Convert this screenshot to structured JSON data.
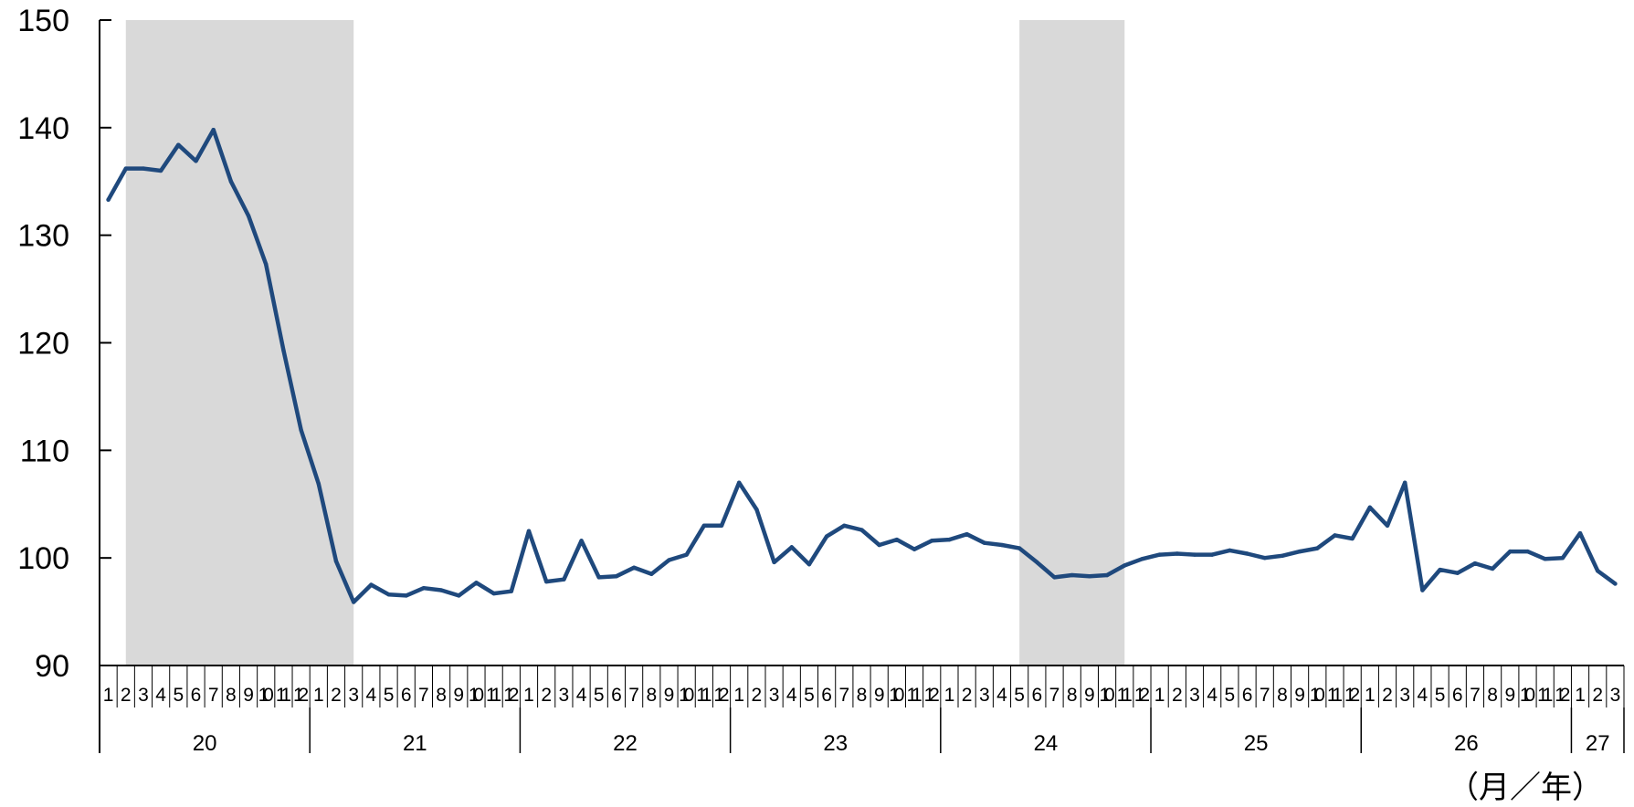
{
  "chart_data": {
    "type": "line",
    "title": "",
    "xlabel": "（月／年）",
    "ylabel": "",
    "ylim": [
      90,
      150
    ],
    "yticks": [
      90,
      100,
      110,
      120,
      130,
      140,
      150
    ],
    "grid": false,
    "legend": "none",
    "colors": {
      "line": "#1f497d",
      "shade": "#d9d9d9",
      "axis": "#000000"
    },
    "year_labels": [
      {
        "label": "20",
        "start": 0,
        "end": 12
      },
      {
        "label": "21",
        "start": 12,
        "end": 24
      },
      {
        "label": "22",
        "start": 24,
        "end": 36
      },
      {
        "label": "23",
        "start": 36,
        "end": 48
      },
      {
        "label": "24",
        "start": 48,
        "end": 60
      },
      {
        "label": "25",
        "start": 60,
        "end": 72
      },
      {
        "label": "26",
        "start": 72,
        "end": 84
      },
      {
        "label": "27",
        "start": 84,
        "end": 87
      }
    ],
    "shaded_periods": [
      {
        "start": "20-02",
        "end": "21-03"
      },
      {
        "start": "24-05",
        "end": "24-11"
      }
    ],
    "categories": [
      "1",
      "2",
      "3",
      "4",
      "5",
      "6",
      "7",
      "8",
      "9",
      "10",
      "11",
      "12",
      "1",
      "2",
      "3",
      "4",
      "5",
      "6",
      "7",
      "8",
      "9",
      "10",
      "11",
      "12",
      "1",
      "2",
      "3",
      "4",
      "5",
      "6",
      "7",
      "8",
      "9",
      "10",
      "11",
      "12",
      "1",
      "2",
      "3",
      "4",
      "5",
      "6",
      "7",
      "8",
      "9",
      "10",
      "11",
      "12",
      "1",
      "2",
      "3",
      "4",
      "5",
      "6",
      "7",
      "8",
      "9",
      "10",
      "11",
      "12",
      "1",
      "2",
      "3",
      "4",
      "5",
      "6",
      "7",
      "8",
      "9",
      "10",
      "11",
      "12",
      "1",
      "2",
      "3",
      "4",
      "5",
      "6",
      "7",
      "8",
      "9",
      "10",
      "11",
      "12",
      "1",
      "2",
      "3"
    ],
    "series": [
      {
        "values": [
          133.3,
          136.2,
          136.2,
          136.0,
          138.4,
          136.9,
          139.8,
          135.0,
          131.8,
          127.3,
          119.3,
          111.9,
          106.9,
          99.7,
          95.9,
          97.5,
          96.6,
          96.5,
          97.2,
          97.0,
          96.5,
          97.7,
          96.7,
          96.9,
          102.5,
          97.8,
          98.0,
          101.6,
          98.2,
          98.3,
          99.1,
          98.5,
          99.8,
          100.3,
          103.0,
          103.0,
          107.0,
          104.5,
          99.6,
          101.0,
          99.4,
          102.0,
          103.0,
          102.6,
          101.2,
          101.7,
          100.8,
          101.6,
          101.7,
          102.2,
          101.4,
          101.2,
          100.9,
          99.6,
          98.2,
          98.4,
          98.3,
          98.4,
          99.3,
          99.9,
          100.3,
          100.4,
          100.3,
          100.3,
          100.7,
          100.4,
          100.0,
          100.2,
          100.6,
          100.9,
          102.1,
          101.8,
          104.7,
          103.0,
          107.0,
          97.0,
          98.9,
          98.6,
          99.5,
          99.0,
          100.6,
          100.6,
          99.9,
          100.0,
          102.3,
          98.8,
          97.6
        ]
      }
    ]
  }
}
